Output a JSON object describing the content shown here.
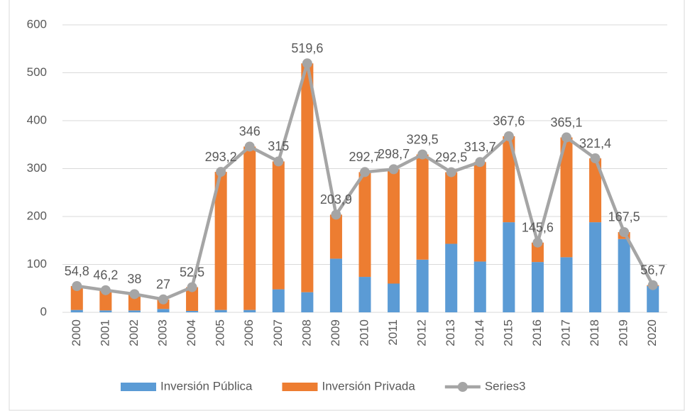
{
  "chart_data": {
    "type": "bar_line",
    "categories": [
      "2000",
      "2001",
      "2002",
      "2003",
      "2004",
      "2005",
      "2006",
      "2007",
      "2008",
      "2009",
      "2010",
      "2011",
      "2012",
      "2013",
      "2014",
      "2015",
      "2016",
      "2017",
      "2018",
      "2019",
      "2020"
    ],
    "series": [
      {
        "name": "Inversión Pública",
        "color": "#5b9bd5",
        "kind": "bar",
        "values": [
          5,
          4,
          4,
          7,
          3,
          5,
          5,
          48,
          42,
          112,
          74,
          60,
          110,
          143,
          106,
          188,
          105,
          115,
          188,
          153,
          55
        ]
      },
      {
        "name": "Inversión Privada",
        "color": "#ed7d31",
        "kind": "bar",
        "values": [
          49.8,
          42.2,
          34,
          20,
          49.5,
          288.2,
          341,
          267,
          477.6,
          91.9,
          218.7,
          238.7,
          219.5,
          149.5,
          207.7,
          179.6,
          40.6,
          250.1,
          133.4,
          14.5,
          1.7
        ]
      },
      {
        "name": "Series3",
        "color": "#a5a5a5",
        "kind": "line",
        "values": [
          54.8,
          46.2,
          38,
          27,
          52.5,
          293.2,
          346,
          315,
          519.6,
          203.9,
          292.7,
          298.7,
          329.5,
          292.5,
          313.7,
          367.6,
          145.6,
          365.1,
          321.4,
          167.5,
          56.7
        ],
        "value_labels": [
          "54,8",
          "46,2",
          "38",
          "27",
          "52,5",
          "293,2",
          "346",
          "315",
          "519,6",
          "203,9",
          "292,7",
          "298,7",
          "329,5",
          "292,5",
          "313,7",
          "367,6",
          "145,6",
          "365,1",
          "321,4",
          "167,5",
          "56,7"
        ]
      }
    ],
    "ylim": [
      0,
      600
    ],
    "yticks": [
      0,
      100,
      200,
      300,
      400,
      500,
      600
    ],
    "grid": true,
    "legend": "bottom"
  }
}
